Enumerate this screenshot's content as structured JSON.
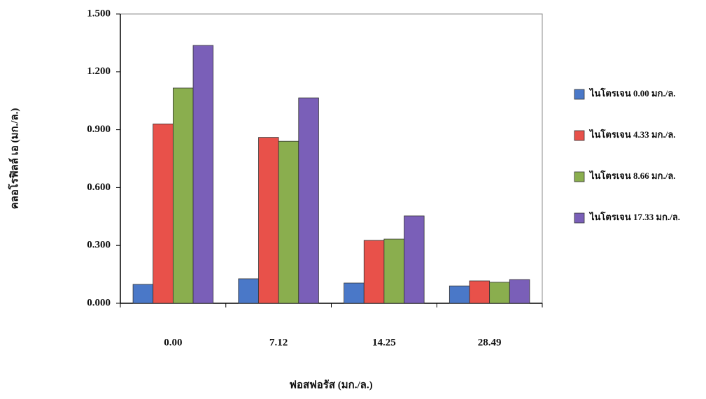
{
  "chart_data": {
    "type": "bar",
    "y_label": "คลอโรฟิลล์ เอ (มก./ล.)",
    "x_label": "ฟอสฟอรัส (มก./ล.)",
    "categories": [
      "0.00",
      "7.12",
      "14.25",
      "28.49"
    ],
    "series": [
      {
        "name": "ไนโตรเจน 0.00 มก./ล.",
        "color": "#4a78c8",
        "values": [
          0.098,
          0.127,
          0.105,
          0.09
        ]
      },
      {
        "name": "ไนโตรเจน 4.33 มก./ล.",
        "color": "#e8514a",
        "values": [
          0.93,
          0.86,
          0.326,
          0.116
        ]
      },
      {
        "name": "ไนโตรเจน 8.66 มก./ล.",
        "color": "#8aae4e",
        "values": [
          1.116,
          0.84,
          0.333,
          0.109
        ]
      },
      {
        "name": "ไนโตรเจน 17.33 มก./ล.",
        "color": "#7a5fb8",
        "values": [
          1.337,
          1.065,
          0.453,
          0.123
        ]
      }
    ],
    "ylim": [
      0,
      1.5
    ],
    "yticks": [
      {
        "value": 0,
        "label": "0.000"
      },
      {
        "value": 0.3,
        "label": "0.300"
      },
      {
        "value": 0.6,
        "label": "0.600"
      },
      {
        "value": 0.9,
        "label": "0.900"
      },
      {
        "value": 1.2,
        "label": "1.200"
      },
      {
        "value": 1.5,
        "label": "1.500"
      }
    ],
    "legend": "right"
  }
}
